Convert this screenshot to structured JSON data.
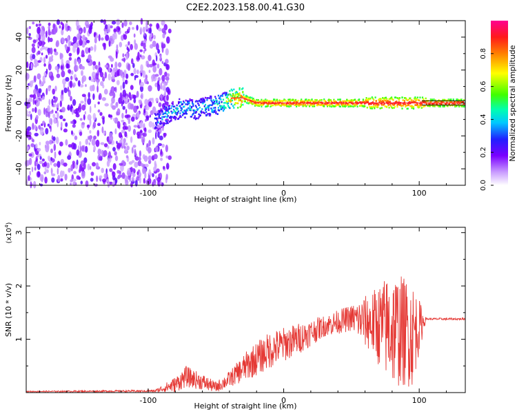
{
  "title": "C2E2.2023.158.00.41.G30",
  "chart_data": [
    {
      "type": "heatmap",
      "xlabel": "Height of straight line (km)",
      "ylabel": "Frequency (Hz)",
      "xlim": [
        -190,
        134
      ],
      "ylim": [
        -50,
        50
      ],
      "x_ticks": [
        -100,
        0,
        100
      ],
      "y_ticks": [
        -40,
        -20,
        0,
        20,
        40
      ],
      "colorbar": {
        "label": "Normalized spectral amplitude",
        "range": [
          0,
          1
        ],
        "ticks": [
          0.0,
          0.2,
          0.4,
          0.6,
          0.8
        ],
        "tick_labels": [
          "0.0",
          "0.2",
          "0.4",
          "0.6",
          "0.8"
        ]
      },
      "noise_region": {
        "x": [
          -190,
          -90
        ],
        "y": [
          -50,
          50
        ],
        "level": 0.15
      },
      "ridge": [
        {
          "x": -95,
          "y": -12,
          "amp": 0.35
        },
        {
          "x": -85,
          "y": -6,
          "amp": 0.4
        },
        {
          "x": -75,
          "y": -3,
          "amp": 0.45
        },
        {
          "x": -65,
          "y": -4,
          "amp": 0.4
        },
        {
          "x": -55,
          "y": -2,
          "amp": 0.45
        },
        {
          "x": -45,
          "y": 0,
          "amp": 0.5
        },
        {
          "x": -38,
          "y": 3,
          "amp": 0.8
        },
        {
          "x": -30,
          "y": 3,
          "amp": 0.85
        },
        {
          "x": -20,
          "y": 0,
          "amp": 0.9
        },
        {
          "x": 0,
          "y": 0,
          "amp": 0.95
        },
        {
          "x": 50,
          "y": 0,
          "amp": 0.95
        },
        {
          "x": 100,
          "y": 0,
          "amp": 0.95
        },
        {
          "x": 134,
          "y": 0,
          "amp": 0.95
        }
      ]
    },
    {
      "type": "line",
      "xlabel": "Height of straight line (km)",
      "ylabel": "SNR (10 * v/v)",
      "y_multiplier": "(x10",
      "y_multiplier_exp": "4",
      "y_multiplier_close": ")",
      "xlim": [
        -190,
        134
      ],
      "ylim": [
        0,
        3.1
      ],
      "x_ticks": [
        -100,
        0,
        100
      ],
      "y_ticks": [
        1,
        2,
        3
      ],
      "color": "#e53935",
      "envelope": [
        {
          "x": -190,
          "y": 0.02,
          "noise": 0.01
        },
        {
          "x": -95,
          "y": 0.03,
          "noise": 0.02
        },
        {
          "x": -80,
          "y": 0.15,
          "noise": 0.15
        },
        {
          "x": -72,
          "y": 0.3,
          "noise": 0.2
        },
        {
          "x": -60,
          "y": 0.2,
          "noise": 0.15
        },
        {
          "x": -50,
          "y": 0.1,
          "noise": 0.1
        },
        {
          "x": -40,
          "y": 0.25,
          "noise": 0.15
        },
        {
          "x": -25,
          "y": 0.55,
          "noise": 0.3
        },
        {
          "x": -10,
          "y": 0.8,
          "noise": 0.35
        },
        {
          "x": 10,
          "y": 1.0,
          "noise": 0.3
        },
        {
          "x": 30,
          "y": 1.25,
          "noise": 0.2
        },
        {
          "x": 50,
          "y": 1.4,
          "noise": 0.25
        },
        {
          "x": 65,
          "y": 1.3,
          "noise": 0.6
        },
        {
          "x": 80,
          "y": 1.2,
          "noise": 1.1
        },
        {
          "x": 95,
          "y": 1.1,
          "noise": 1.0
        },
        {
          "x": 105,
          "y": 1.38,
          "noise": 0.02
        },
        {
          "x": 134,
          "y": 1.38,
          "noise": 0.02
        }
      ]
    }
  ]
}
